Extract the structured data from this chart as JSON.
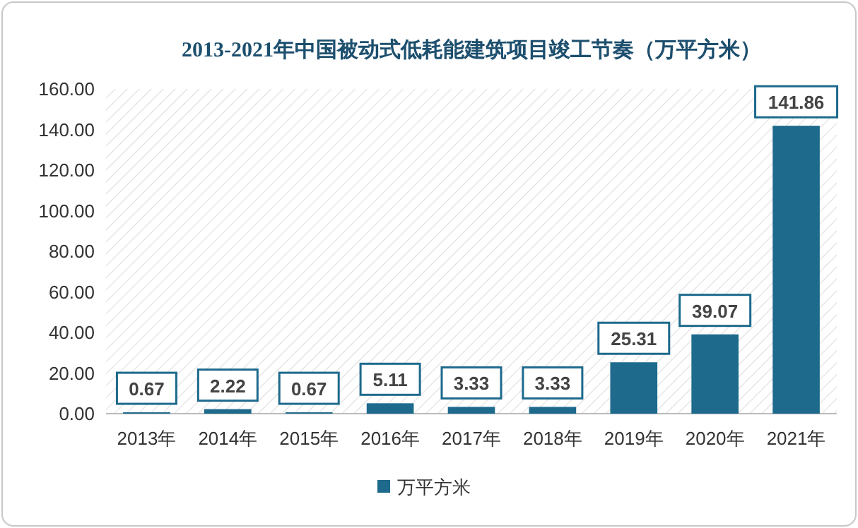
{
  "chart_data": {
    "type": "bar",
    "title": "2013-2021年中国被动式低耗能建筑项目竣工节奏（万平方米）",
    "categories": [
      "2013年",
      "2014年",
      "2015年",
      "2016年",
      "2017年",
      "2018年",
      "2019年",
      "2020年",
      "2021年"
    ],
    "series": [
      {
        "name": "万平方米",
        "color": "#1d6a8c",
        "values": [
          0.67,
          2.22,
          0.67,
          5.11,
          3.33,
          3.33,
          25.31,
          39.07,
          141.86
        ]
      }
    ],
    "ylim": [
      0,
      160
    ],
    "yticks": [
      {
        "value": 0,
        "label": "0.00"
      },
      {
        "value": 20,
        "label": "20.00"
      },
      {
        "value": 40,
        "label": "40.00"
      },
      {
        "value": 60,
        "label": "60.00"
      },
      {
        "value": 80,
        "label": "80.00"
      },
      {
        "value": 100,
        "label": "100.00"
      },
      {
        "value": 120,
        "label": "120.00"
      },
      {
        "value": 140,
        "label": "140.00"
      },
      {
        "value": 160,
        "label": "160.00"
      }
    ],
    "data_labels": true,
    "legend": "bottom",
    "grid": false
  }
}
